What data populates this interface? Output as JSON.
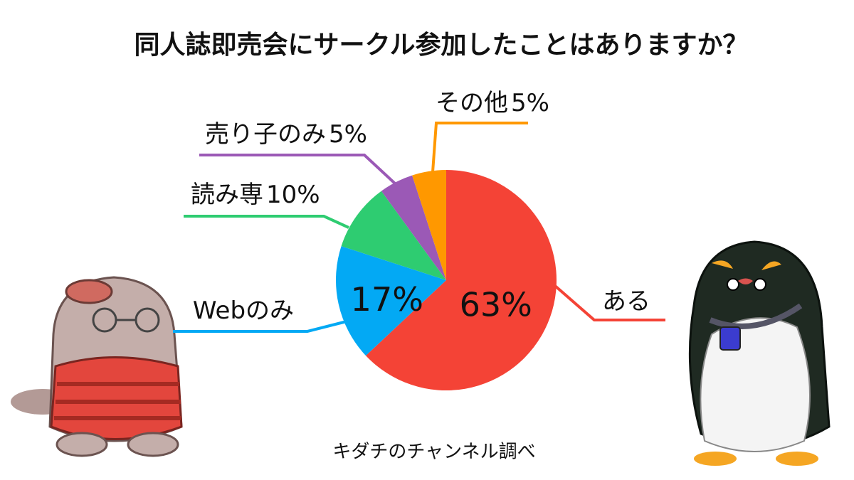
{
  "chart_data": {
    "type": "pie",
    "title": "同人誌即売会にサークル参加したことはありますか？",
    "categories": [
      "ある",
      "Webのみ",
      "読み専",
      "売り子のみ",
      "その他"
    ],
    "values": [
      63,
      17,
      10,
      5,
      5
    ],
    "value_labels": [
      "63%",
      "17%",
      "10%",
      "5%",
      "5%"
    ],
    "colors": [
      "#f44336",
      "#03a9f4",
      "#2ecc71",
      "#9b59b6",
      "#ff9800"
    ],
    "source": "キダチのチャンネル調べ"
  }
}
